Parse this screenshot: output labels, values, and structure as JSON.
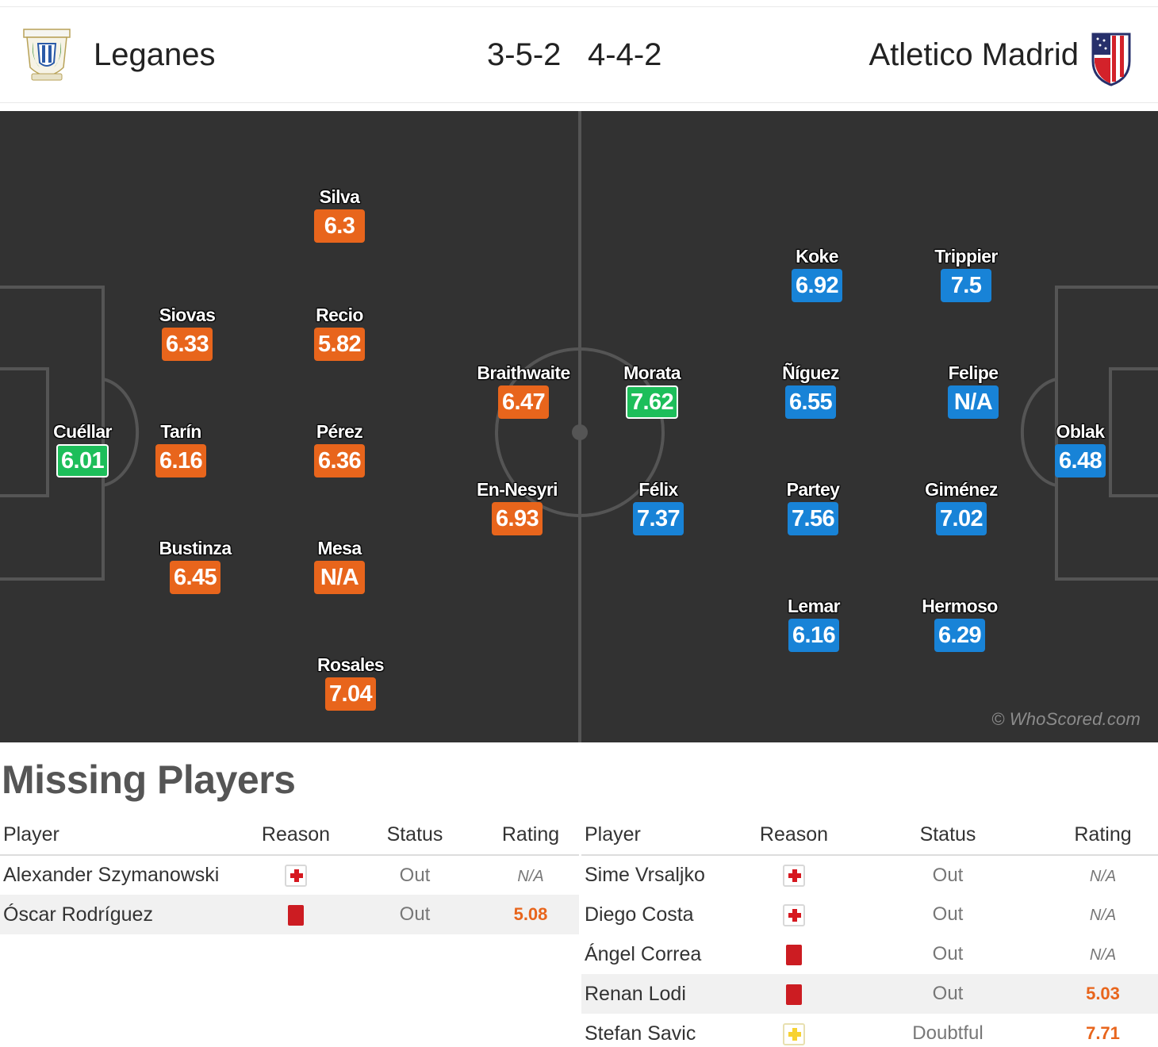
{
  "match": {
    "home": {
      "name": "Leganes",
      "formation": "3-5-2"
    },
    "away": {
      "name": "Atletico Madrid",
      "formation": "4-4-2"
    }
  },
  "pitch": {
    "watermark": "© WhoScored.com",
    "home_players": [
      {
        "name": "Cuéllar",
        "rating": "6.01",
        "color": "green"
      },
      {
        "name": "Siovas",
        "rating": "6.33",
        "color": "orange"
      },
      {
        "name": "Tarín",
        "rating": "6.16",
        "color": "orange"
      },
      {
        "name": "Bustinza",
        "rating": "6.45",
        "color": "orange"
      },
      {
        "name": "Silva",
        "rating": "6.3",
        "color": "orange"
      },
      {
        "name": "Recio",
        "rating": "5.82",
        "color": "orange"
      },
      {
        "name": "Pérez",
        "rating": "6.36",
        "color": "orange"
      },
      {
        "name": "Mesa",
        "rating": "N/A",
        "color": "orange"
      },
      {
        "name": "Rosales",
        "rating": "7.04",
        "color": "orange"
      },
      {
        "name": "Braithwaite",
        "rating": "6.47",
        "color": "orange"
      },
      {
        "name": "En-Nesyri",
        "rating": "6.93",
        "color": "orange"
      }
    ],
    "away_players": [
      {
        "name": "Morata",
        "rating": "7.62",
        "color": "green"
      },
      {
        "name": "Félix",
        "rating": "7.37",
        "color": "blue"
      },
      {
        "name": "Koke",
        "rating": "6.92",
        "color": "blue"
      },
      {
        "name": "Ñíguez",
        "rating": "6.55",
        "color": "blue"
      },
      {
        "name": "Partey",
        "rating": "7.56",
        "color": "blue"
      },
      {
        "name": "Lemar",
        "rating": "6.16",
        "color": "blue"
      },
      {
        "name": "Trippier",
        "rating": "7.5",
        "color": "blue"
      },
      {
        "name": "Felipe",
        "rating": "N/A",
        "color": "blue"
      },
      {
        "name": "Giménez",
        "rating": "7.02",
        "color": "blue"
      },
      {
        "name": "Hermoso",
        "rating": "6.29",
        "color": "blue"
      },
      {
        "name": "Oblak",
        "rating": "6.48",
        "color": "blue"
      }
    ]
  },
  "missing": {
    "title": "Missing Players",
    "columns": [
      "Player",
      "Reason",
      "Status",
      "Rating"
    ],
    "home": [
      {
        "player": "Alexander Szymanowski",
        "reason": "injury-icon",
        "status": "Out",
        "rating": "N/A"
      },
      {
        "player": "Óscar Rodríguez",
        "reason": "red-card-icon",
        "status": "Out",
        "rating": "5.08"
      }
    ],
    "away": [
      {
        "player": "Sime Vrsaljko",
        "reason": "injury-icon",
        "status": "Out",
        "rating": "N/A"
      },
      {
        "player": "Diego Costa",
        "reason": "injury-icon",
        "status": "Out",
        "rating": "N/A"
      },
      {
        "player": "Ángel Correa",
        "reason": "red-card-icon",
        "status": "Out",
        "rating": "N/A"
      },
      {
        "player": "Renan Lodi",
        "reason": "red-card-icon",
        "status": "Out",
        "rating": "5.03"
      },
      {
        "player": "Stefan Savic",
        "reason": "doubtful-icon",
        "status": "Doubtful",
        "rating": "7.71"
      }
    ]
  },
  "colors": {
    "orange": "#e8651c",
    "blue": "#1883d7",
    "green": "#1dbe5a",
    "pitch": "#323232"
  }
}
